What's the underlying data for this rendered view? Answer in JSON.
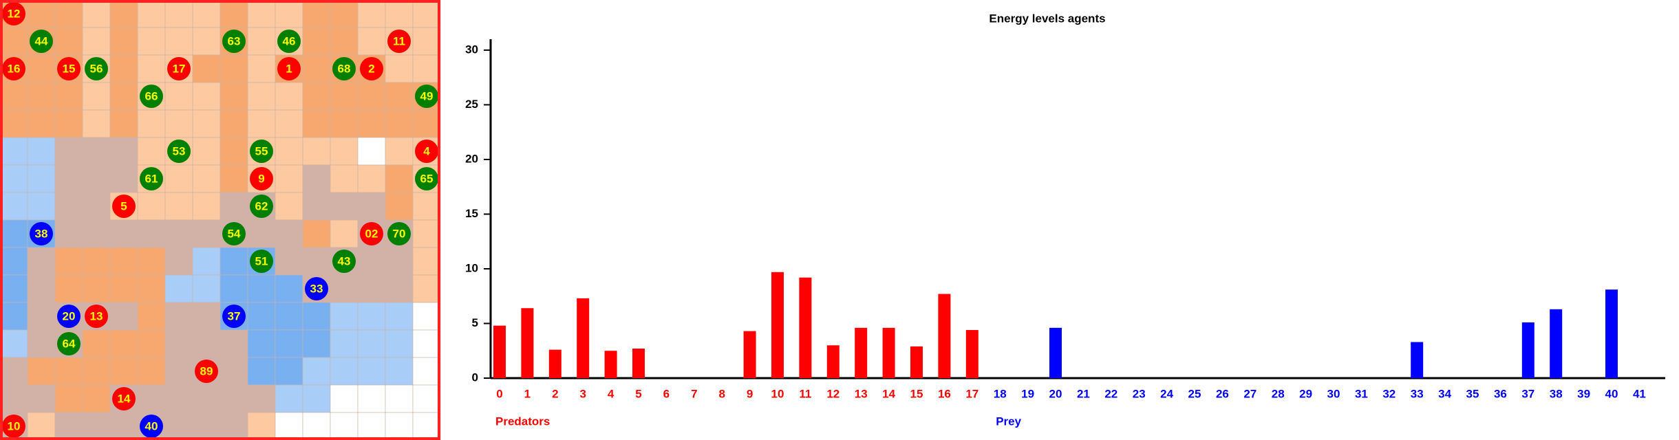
{
  "grid": {
    "columns": 16,
    "rows": 16,
    "agents": [
      {
        "label": "12",
        "col": 0,
        "row": 0,
        "color": "#ff0000"
      },
      {
        "label": "11",
        "col": 14,
        "row": 1,
        "color": "#ff0000"
      },
      {
        "label": "16",
        "col": 0,
        "row": 2,
        "color": "#ff0000"
      },
      {
        "label": "15",
        "col": 2,
        "row": 2,
        "color": "#ff0000"
      },
      {
        "label": "17",
        "col": 6,
        "row": 2,
        "color": "#ff0000"
      },
      {
        "label": "1",
        "col": 10,
        "row": 2,
        "color": "#ff0000"
      },
      {
        "label": "2",
        "col": 13,
        "row": 2,
        "color": "#ff0000"
      },
      {
        "label": "4",
        "col": 15,
        "row": 5,
        "color": "#ff0000"
      },
      {
        "label": "9",
        "col": 9,
        "row": 6,
        "color": "#ff0000"
      },
      {
        "label": "5",
        "col": 4,
        "row": 7,
        "color": "#ff0000"
      },
      {
        "label": "02",
        "col": 13,
        "row": 8,
        "color": "#ff0000"
      },
      {
        "label": "13",
        "col": 3,
        "row": 11,
        "color": "#ff0000"
      },
      {
        "label": "89",
        "col": 7,
        "row": 13,
        "color": "#ff0000"
      },
      {
        "label": "14",
        "col": 4,
        "row": 14,
        "color": "#ff0000"
      },
      {
        "label": "10",
        "col": 0,
        "row": 15,
        "color": "#ff0000"
      },
      {
        "label": "44",
        "col": 1,
        "row": 1,
        "color": "#008000"
      },
      {
        "label": "63",
        "col": 8,
        "row": 1,
        "color": "#008000"
      },
      {
        "label": "46",
        "col": 10,
        "row": 1,
        "color": "#008000"
      },
      {
        "label": "56",
        "col": 3,
        "row": 2,
        "color": "#008000"
      },
      {
        "label": "68",
        "col": 12,
        "row": 2,
        "color": "#008000"
      },
      {
        "label": "66",
        "col": 5,
        "row": 3,
        "color": "#008000"
      },
      {
        "label": "49",
        "col": 15,
        "row": 3,
        "color": "#008000"
      },
      {
        "label": "53",
        "col": 6,
        "row": 5,
        "color": "#008000"
      },
      {
        "label": "55",
        "col": 9,
        "row": 5,
        "color": "#008000"
      },
      {
        "label": "61",
        "col": 5,
        "row": 6,
        "color": "#008000"
      },
      {
        "label": "65",
        "col": 15,
        "row": 6,
        "color": "#008000"
      },
      {
        "label": "62",
        "col": 9,
        "row": 7,
        "color": "#008000"
      },
      {
        "label": "54",
        "col": 8,
        "row": 8,
        "color": "#008000"
      },
      {
        "label": "70",
        "col": 14,
        "row": 8,
        "color": "#008000"
      },
      {
        "label": "51",
        "col": 9,
        "row": 9,
        "color": "#008000"
      },
      {
        "label": "43",
        "col": 12,
        "row": 9,
        "color": "#008000"
      },
      {
        "label": "64",
        "col": 2,
        "row": 12,
        "color": "#008000"
      },
      {
        "label": "38",
        "col": 1,
        "row": 8,
        "color": "#0000ff"
      },
      {
        "label": "33",
        "col": 11,
        "row": 10,
        "color": "#0000ff"
      },
      {
        "label": "20",
        "col": 2,
        "row": 11,
        "color": "#0000ff"
      },
      {
        "label": "37",
        "col": 8,
        "row": 11,
        "color": "#0000ff"
      },
      {
        "label": "40",
        "col": 5,
        "row": 15,
        "color": "#0000ff"
      }
    ]
  },
  "chart_data": {
    "type": "bar",
    "title": "Energy levels agents",
    "categories": [
      "0",
      "1",
      "2",
      "3",
      "4",
      "5",
      "6",
      "7",
      "8",
      "9",
      "10",
      "11",
      "12",
      "13",
      "14",
      "15",
      "16",
      "17",
      "18",
      "19",
      "20",
      "21",
      "22",
      "23",
      "24",
      "25",
      "26",
      "27",
      "28",
      "29",
      "30",
      "31",
      "32",
      "33",
      "34",
      "35",
      "36",
      "37",
      "38",
      "39",
      "40",
      "41"
    ],
    "series": [
      {
        "name": "Predators",
        "color": "#ff0000",
        "values": [
          4.8,
          6.4,
          2.6,
          7.3,
          2.5,
          2.7,
          0,
          0,
          0,
          4.3,
          9.7,
          9.2,
          3.0,
          4.6,
          4.6,
          2.9,
          7.7,
          4.4,
          null,
          null,
          null,
          null,
          null,
          null,
          null,
          null,
          null,
          null,
          null,
          null,
          null,
          null,
          null,
          null,
          null,
          null,
          null,
          null,
          null,
          null,
          null,
          null
        ]
      },
      {
        "name": "Prey",
        "color": "#0000ff",
        "values": [
          null,
          null,
          null,
          null,
          null,
          null,
          null,
          null,
          null,
          null,
          null,
          null,
          null,
          null,
          null,
          null,
          null,
          null,
          0,
          0,
          4.6,
          0,
          0,
          0,
          0,
          0,
          0,
          0,
          0,
          0,
          0,
          0,
          0,
          3.3,
          0,
          0,
          0,
          5.1,
          6.3,
          0,
          8.1,
          0
        ]
      }
    ],
    "ylim": [
      0,
      31
    ],
    "yticks": [
      0,
      5,
      10,
      15,
      20,
      25,
      30
    ]
  }
}
